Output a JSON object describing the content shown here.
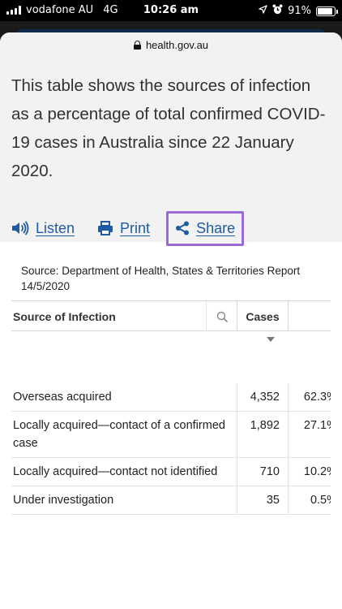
{
  "status": {
    "carrier": "vodafone AU",
    "network": "4G",
    "time": "10:26 am",
    "battery": "91%",
    "battery_level": 0.91
  },
  "browser": {
    "domain": "health.gov.au"
  },
  "intro": {
    "text": "This table shows the sources of infection as a percentage of total confirmed COVID-19 cases in Australia since 22 January 2020."
  },
  "actions": {
    "listen": "Listen",
    "print": "Print",
    "share": "Share"
  },
  "source_note": "Source: Department of Health, States & Territories Report 14/5/2020",
  "table": {
    "headers": {
      "source": "Source of Infection",
      "cases": "Cases"
    },
    "rows": [
      {
        "source": "Overseas acquired",
        "cases": "4,352",
        "percent": "62.3%"
      },
      {
        "source": "Locally acquired—contact of a confirmed case",
        "cases": "1,892",
        "percent": "27.1%"
      },
      {
        "source": "Locally acquired—contact not identified",
        "cases": "710",
        "percent": "10.2%"
      },
      {
        "source": "Under investigation",
        "cases": "35",
        "percent": "0.5%"
      }
    ]
  },
  "colors": {
    "link": "#1f5ba5",
    "share_focus": "#9a6bd8"
  }
}
